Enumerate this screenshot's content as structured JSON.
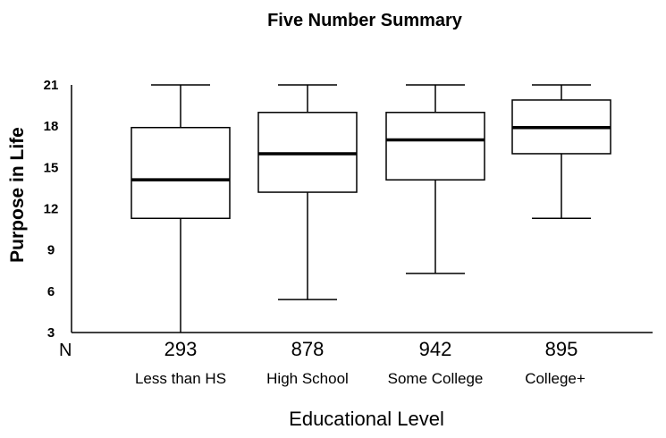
{
  "chart_data": {
    "type": "boxplot",
    "title": "Five Number Summary",
    "xlabel": "Educational Level",
    "ylabel": "Purpose in Life",
    "n_label": "N",
    "ylim": [
      3,
      21
    ],
    "yticks": [
      3,
      6,
      9,
      12,
      15,
      18,
      21
    ],
    "grid": false,
    "categories": [
      "Less than HS",
      "High School",
      "Some College",
      "College+"
    ],
    "counts": [
      "293",
      "878",
      "942",
      "895"
    ],
    "boxes": [
      {
        "min": 3,
        "q1": 11.3,
        "median": 14.1,
        "q3": 17.9,
        "max": 21
      },
      {
        "min": 5.4,
        "q1": 13.2,
        "median": 16.0,
        "q3": 19.0,
        "max": 21
      },
      {
        "min": 7.3,
        "q1": 14.1,
        "median": 17.0,
        "q3": 19.0,
        "max": 21
      },
      {
        "min": 11.3,
        "q1": 16.0,
        "median": 17.9,
        "q3": 19.9,
        "max": 21
      }
    ]
  }
}
